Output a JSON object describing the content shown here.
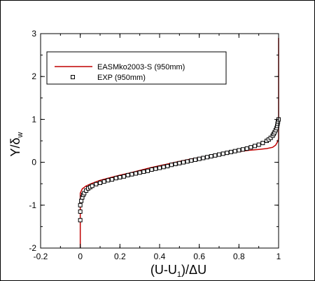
{
  "chart_data": {
    "type": "line",
    "xlabel_main": "(U-U",
    "xlabel_sub": "1",
    "xlabel_tail": ")/ΔU",
    "ylabel_main": "Y/δ",
    "ylabel_sub": "w",
    "xlim": [
      -0.2,
      1.0
    ],
    "ylim": [
      -2,
      3
    ],
    "xticks": [
      -0.2,
      0,
      0.2,
      0.4,
      0.6,
      0.8,
      1
    ],
    "xtick_labels": [
      "-0.2",
      "0",
      "0.2",
      "0.4",
      "0.6",
      "0.8",
      "1"
    ],
    "yticks": [
      -2,
      -1,
      0,
      1,
      2,
      3
    ],
    "ytick_labels": [
      "-2",
      "-1",
      "0",
      "1",
      "2",
      "3"
    ],
    "legend_position": "top-left",
    "series": [
      {
        "name": "EASMko2003-S (950mm)",
        "style": "line",
        "color": "#c00000",
        "x": [
          0.0,
          0.0,
          0.0,
          0.01,
          0.03,
          0.06,
          0.1,
          0.15,
          0.2,
          0.25,
          0.3,
          0.35,
          0.4,
          0.45,
          0.5,
          0.55,
          0.6,
          0.65,
          0.7,
          0.75,
          0.8,
          0.85,
          0.9,
          0.94,
          0.97,
          0.985,
          0.995,
          1.0,
          1.0,
          1.0
        ],
        "y": [
          -2.0,
          -1.0,
          -0.72,
          -0.62,
          -0.55,
          -0.49,
          -0.42,
          -0.36,
          -0.3,
          -0.25,
          -0.19,
          -0.13,
          -0.08,
          -0.03,
          0.02,
          0.07,
          0.11,
          0.15,
          0.19,
          0.22,
          0.25,
          0.28,
          0.3,
          0.32,
          0.35,
          0.4,
          0.48,
          0.55,
          1.5,
          2.9
        ]
      },
      {
        "name": "EXP (950mm)",
        "style": "markers",
        "marker": "square",
        "color": "#000000",
        "x": [
          0.0,
          0.0,
          0.0,
          0.005,
          0.01,
          0.015,
          0.02,
          0.03,
          0.04,
          0.05,
          0.06,
          0.08,
          0.1,
          0.12,
          0.14,
          0.16,
          0.18,
          0.2,
          0.22,
          0.24,
          0.26,
          0.28,
          0.3,
          0.32,
          0.34,
          0.36,
          0.38,
          0.4,
          0.42,
          0.44,
          0.46,
          0.48,
          0.5,
          0.52,
          0.54,
          0.56,
          0.58,
          0.6,
          0.62,
          0.64,
          0.66,
          0.68,
          0.7,
          0.72,
          0.74,
          0.76,
          0.78,
          0.8,
          0.82,
          0.84,
          0.86,
          0.88,
          0.9,
          0.92,
          0.94,
          0.95,
          0.96,
          0.97,
          0.975,
          0.98,
          0.985,
          0.99,
          0.993,
          0.995,
          0.997,
          1.0
        ],
        "y": [
          -1.35,
          -1.15,
          -1.0,
          -0.9,
          -0.82,
          -0.76,
          -0.72,
          -0.66,
          -0.61,
          -0.58,
          -0.55,
          -0.51,
          -0.48,
          -0.45,
          -0.42,
          -0.4,
          -0.37,
          -0.35,
          -0.33,
          -0.3,
          -0.28,
          -0.26,
          -0.24,
          -0.22,
          -0.2,
          -0.17,
          -0.15,
          -0.13,
          -0.11,
          -0.09,
          -0.06,
          -0.04,
          -0.02,
          0.0,
          0.02,
          0.04,
          0.06,
          0.08,
          0.1,
          0.12,
          0.14,
          0.16,
          0.18,
          0.2,
          0.22,
          0.24,
          0.26,
          0.28,
          0.3,
          0.32,
          0.35,
          0.38,
          0.41,
          0.45,
          0.5,
          0.53,
          0.57,
          0.62,
          0.66,
          0.7,
          0.75,
          0.8,
          0.85,
          0.9,
          0.95,
          1.0
        ]
      }
    ]
  }
}
